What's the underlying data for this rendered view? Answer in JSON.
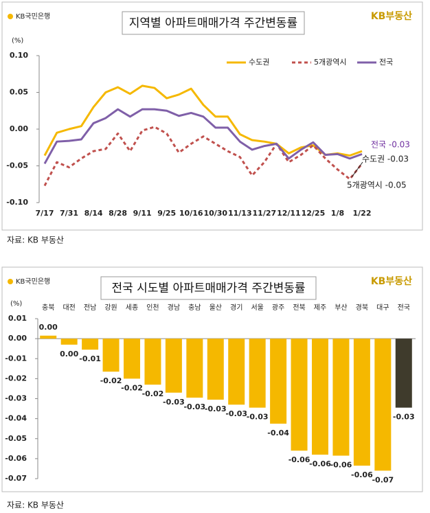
{
  "chart_data": [
    {
      "type": "line",
      "title": "지역별 아파트매매가격 주간변동률",
      "logo_left": "KB국민은행",
      "logo_right": "KB부동산",
      "unit": "(%)",
      "categories": [
        "7/17",
        null,
        "7/31",
        null,
        "8/14",
        null,
        "8/28",
        null,
        "9/11",
        null,
        "9/25",
        null,
        "10/16",
        null,
        "10/30",
        null,
        "11/13",
        null,
        "11/27",
        null,
        "12/11",
        null,
        "12/25",
        null,
        "1/8",
        null,
        "1/22"
      ],
      "series": [
        {
          "name": "수도권",
          "color": "#f5b800",
          "dashed": false,
          "values": [
            -0.036,
            -0.005,
            0.0,
            0.004,
            0.03,
            0.05,
            0.057,
            0.048,
            0.059,
            0.056,
            0.042,
            0.047,
            0.055,
            0.033,
            0.017,
            0.017,
            -0.007,
            -0.015,
            -0.017,
            -0.02,
            -0.033,
            -0.025,
            -0.022,
            -0.035,
            -0.033,
            -0.036,
            -0.03
          ]
        },
        {
          "name": "5개광역시",
          "color": "#c0504d",
          "dashed": true,
          "values": [
            -0.077,
            -0.045,
            -0.052,
            -0.04,
            -0.03,
            -0.027,
            -0.006,
            -0.03,
            -0.002,
            0.003,
            -0.006,
            -0.032,
            -0.02,
            -0.01,
            -0.02,
            -0.03,
            -0.038,
            -0.063,
            -0.045,
            -0.02,
            -0.045,
            -0.035,
            -0.022,
            -0.04,
            -0.055,
            -0.068,
            -0.047
          ]
        },
        {
          "name": "전국",
          "color": "#7f5fa8",
          "dashed": false,
          "values": [
            -0.047,
            -0.017,
            -0.016,
            -0.014,
            0.008,
            0.015,
            0.027,
            0.017,
            0.027,
            0.027,
            0.025,
            0.018,
            0.022,
            0.017,
            0.002,
            0.002,
            -0.017,
            -0.028,
            -0.023,
            -0.02,
            -0.04,
            -0.028,
            -0.018,
            -0.035,
            -0.034,
            -0.04,
            -0.034
          ]
        }
      ],
      "annotations": [
        {
          "text": "전국 -0.03",
          "color": "#7030a0"
        },
        {
          "text": "수도권 -0.03",
          "color": "#222222"
        },
        {
          "text": "5개광역시 -0.05",
          "color": "#222222"
        }
      ],
      "ylim": [
        -0.1,
        0.1
      ],
      "yticks": [
        {
          "value": 0.1,
          "label": "0.10"
        },
        0.05,
        {
          "value": 0,
          "label": "0.00"
        },
        -0.05,
        {
          "value": -0.1,
          "label": "-0.10"
        }
      ],
      "grid": false,
      "legend": "top-right",
      "source": "자료: KB 부동산"
    },
    {
      "type": "bar",
      "title": "전국 시도별 아파트매매가격 주간변동률",
      "logo_left": "KB국민은행",
      "logo_right": "KB부동산",
      "unit": "(%)",
      "categories": [
        "충북",
        "대전",
        "전남",
        "강원",
        "세종",
        "인천",
        "경남",
        "충남",
        "울산",
        "경기",
        "서울",
        "광주",
        "전북",
        "제주",
        "부산",
        "경북",
        "대구",
        "전국"
      ],
      "values": [
        0.0015,
        -0.003,
        -0.0055,
        -0.0165,
        -0.02,
        -0.023,
        -0.027,
        -0.0295,
        -0.0305,
        -0.033,
        -0.0345,
        -0.0425,
        -0.056,
        -0.058,
        -0.0585,
        -0.0635,
        -0.066,
        -0.0345
      ],
      "value_labels": [
        "0.00",
        "0.00",
        "-0.01",
        "-0.02",
        "-0.02",
        "-0.02",
        "-0.03",
        "-0.03",
        "-0.03",
        "-0.03",
        "-0.03",
        "-0.04",
        "-0.06",
        "-0.06",
        "-0.06",
        "-0.06",
        "-0.07",
        "-0.03"
      ],
      "colors": [
        "#f5b800",
        "#f5b800",
        "#f5b800",
        "#f5b800",
        "#f5b800",
        "#f5b800",
        "#f5b800",
        "#f5b800",
        "#f5b800",
        "#f5b800",
        "#f5b800",
        "#f5b800",
        "#f5b800",
        "#f5b800",
        "#f5b800",
        "#f5b800",
        "#f5b800",
        "#3f3b2c"
      ],
      "ylim": [
        -0.07,
        0.01
      ],
      "yticks": [
        0.01,
        {
          "value": 0,
          "label": "0.00"
        },
        -0.01,
        -0.02,
        -0.03,
        -0.04,
        -0.05,
        -0.06,
        -0.07
      ],
      "grid": false,
      "source": "자료: KB 부동산"
    }
  ]
}
